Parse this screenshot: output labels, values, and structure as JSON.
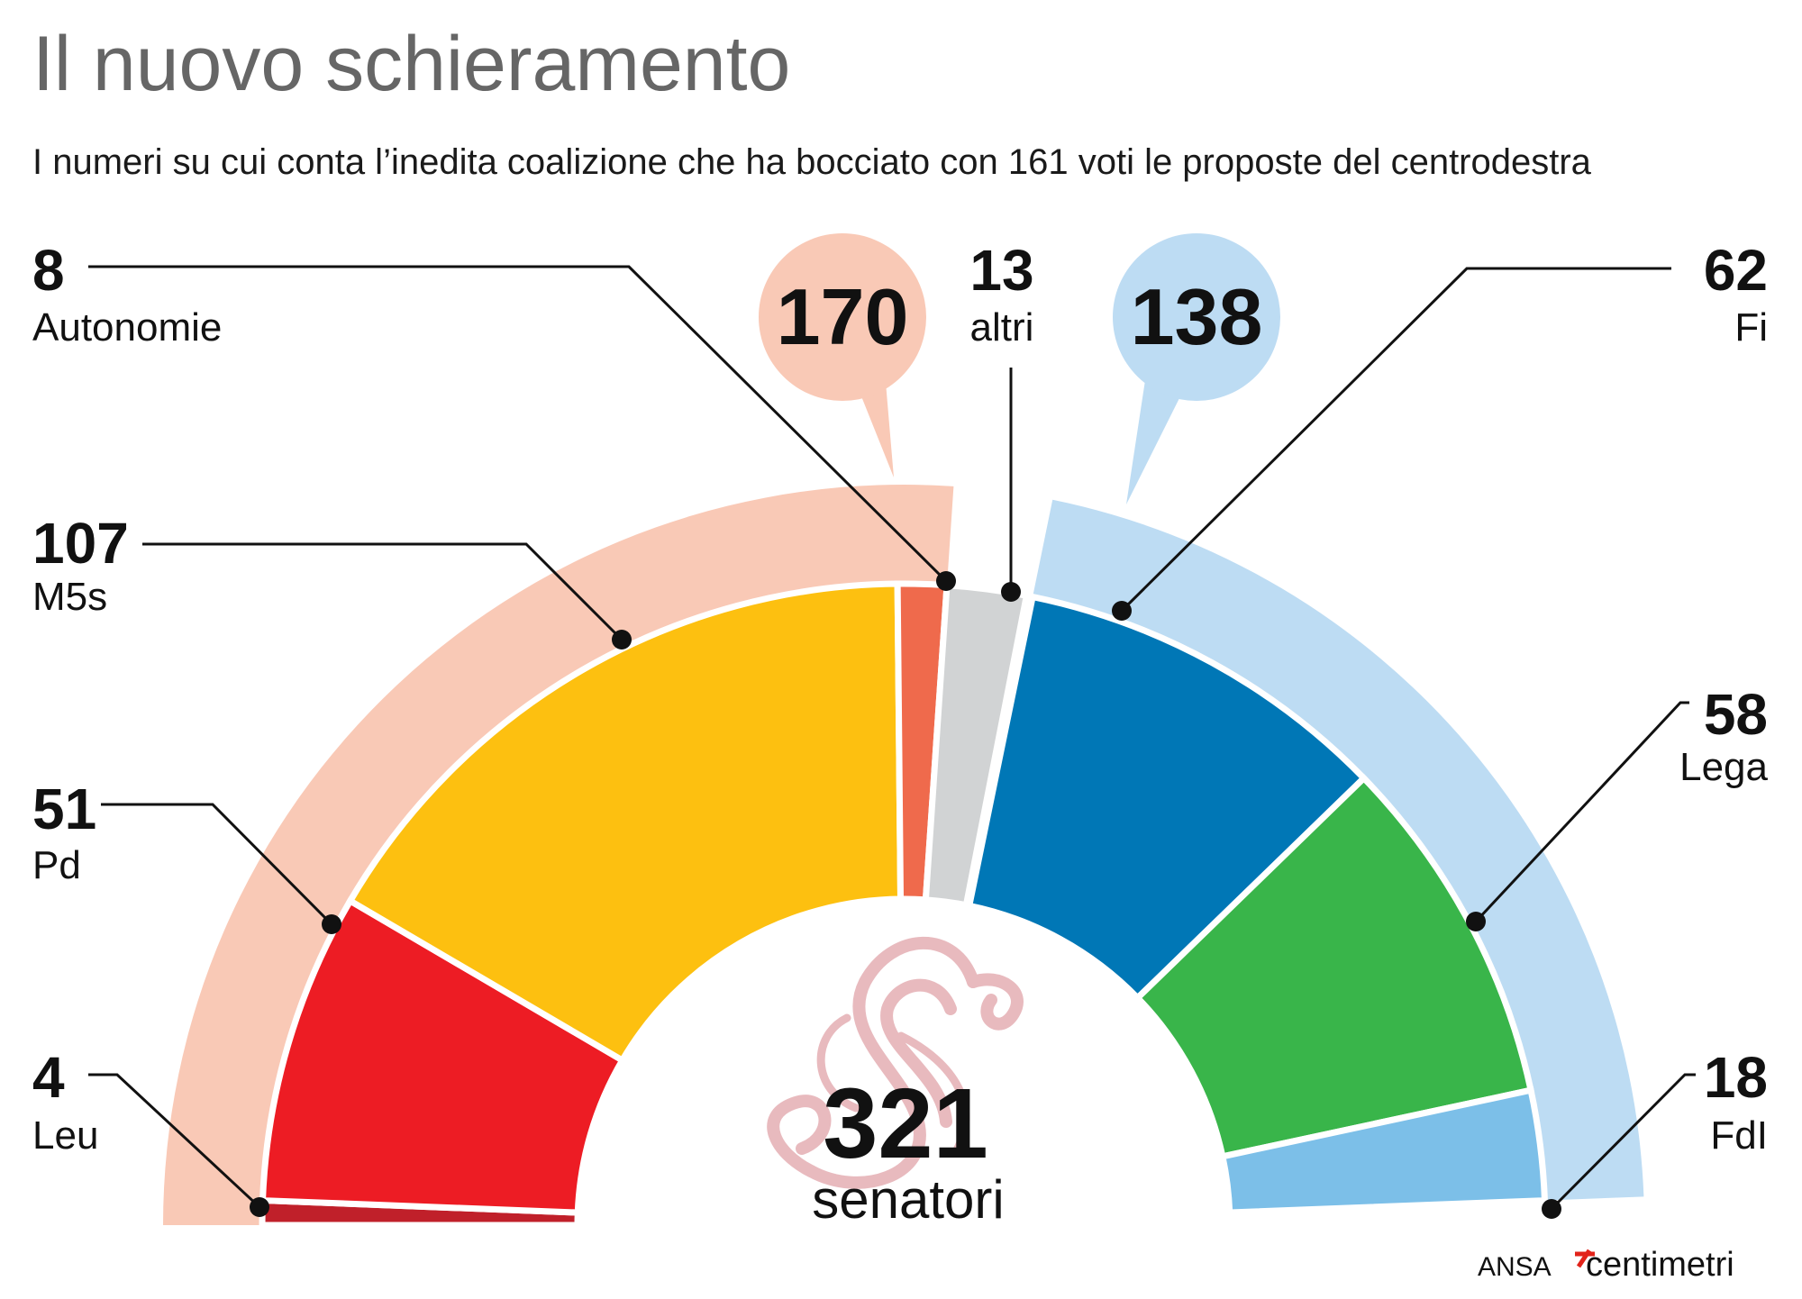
{
  "chart_data": {
    "type": "pie",
    "subtype": "parliament-semicircle",
    "title": "Il nuovo schieramento",
    "subtitle": "I numeri su cui conta l’inedita coalizione che ha bocciato con 161 voti le proposte del centrodestra",
    "total": {
      "value": "321",
      "label": "senatori"
    },
    "series": [
      {
        "name": "Leu",
        "value": 4,
        "color": "#c0202a",
        "group": "left"
      },
      {
        "name": "Pd",
        "value": 51,
        "color": "#ed1c24",
        "group": "left"
      },
      {
        "name": "M5s",
        "value": 107,
        "color": "#fdc010",
        "group": "left"
      },
      {
        "name": "Autonomie",
        "value": 8,
        "color": "#ef6a4c",
        "group": "left"
      },
      {
        "name": "altri",
        "value": 13,
        "color": "#d1d3d4",
        "group": "none"
      },
      {
        "name": "Fi",
        "value": 62,
        "color": "#0077b6",
        "group": "right"
      },
      {
        "name": "Lega",
        "value": 58,
        "color": "#39b54a",
        "group": "right"
      },
      {
        "name": "FdI",
        "value": 18,
        "color": "#7cbfe8",
        "group": "right"
      }
    ],
    "groups": [
      {
        "key": "left",
        "value": "170",
        "color": "#f9c9b6"
      },
      {
        "key": "right",
        "value": "138",
        "color": "#bddcf3"
      }
    ]
  },
  "source": {
    "agency": "ANSA",
    "brand": "centimetri",
    "brand_mark_color": "#e2231a"
  }
}
